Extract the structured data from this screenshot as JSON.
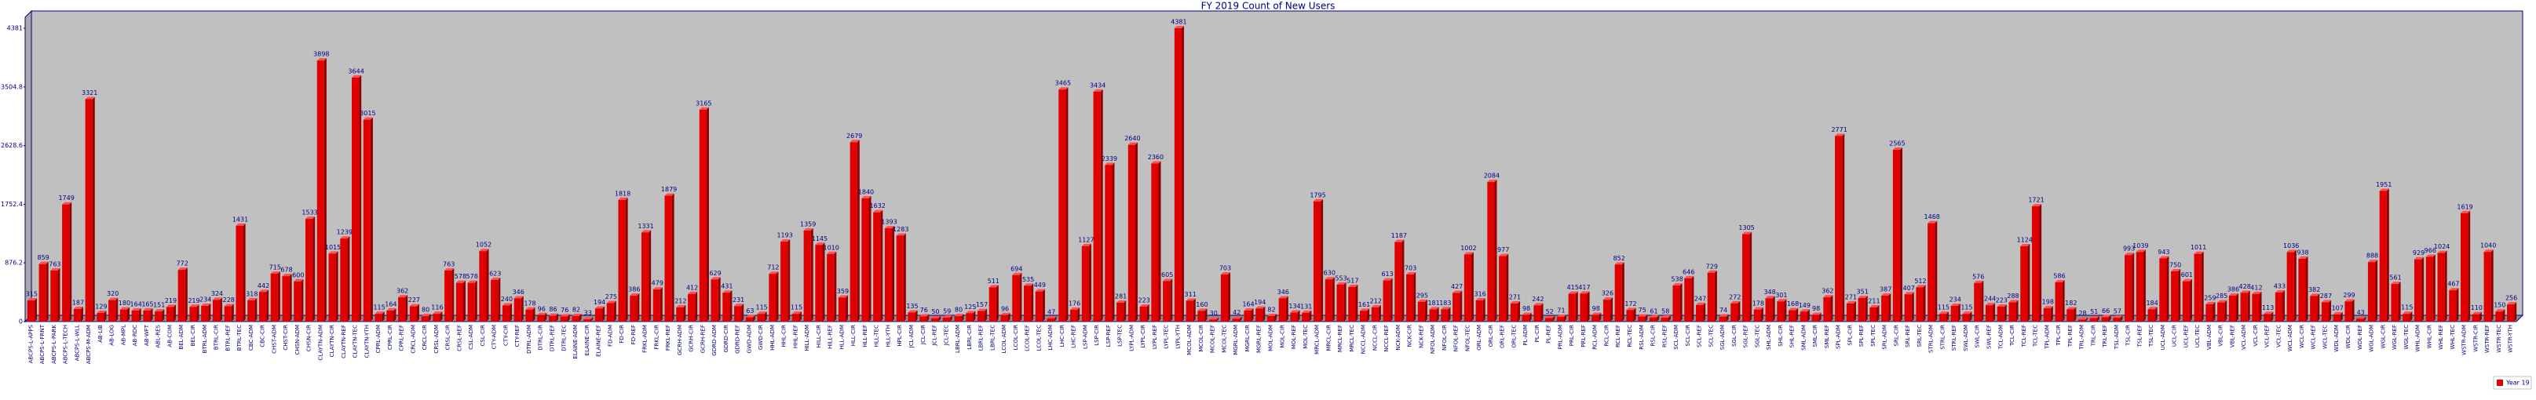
{
  "chart_data": {
    "type": "bar3d",
    "title": "FY 2019 Count of New Users",
    "categories": [
      "ABCPS-L-APPS",
      "ABCPS-L-FRNT",
      "ABCPS-L-PARK",
      "ABCPS-L-TECH",
      "ABCPS-L-WLL",
      "ABCPS-M-ADM",
      "AB-LIB",
      "AB-LOG",
      "AB-MPL",
      "AB-RDC",
      "AB-WFT",
      "ABL-RES",
      "AB-COM",
      "BEL-ADM",
      "BEL-CIR",
      "BTRL-ADM",
      "BTRL-CIR",
      "BTRL-REF",
      "BTRL-TEC",
      "CBC-ADM",
      "CBC-CIR",
      "CHST-ADM",
      "CHST-CIR",
      "CHSN-ADM",
      "CHSN-CIR",
      "CLAYTN-ADM",
      "CLAYTN-CIR",
      "CLAYTN-REF",
      "CLAYTN-TEC",
      "CLAYTN-YTH",
      "CPRL-ADM",
      "CPRL-CIR",
      "CPRL-REF",
      "CRCL-ADM",
      "CRCL-CIR",
      "CRSL-ADM",
      "CRSL-CIR",
      "CRSL-REF",
      "CSL-ADM",
      "CSL-CIR",
      "CTY-ADM",
      "CTY-CIR",
      "CTY-REF",
      "DTRL-ADM",
      "DTRL-CIR",
      "DTRL-REF",
      "DTRL-TEC",
      "ELAINE-ADM",
      "ELAINE-CIR",
      "ELAINE-REF",
      "FD-ADM",
      "FD-CIR",
      "FD-REF",
      "FRKL-ADM",
      "FRKL-CIR",
      "FRKL-REF",
      "GCRH-ADM",
      "GCRH-CIR",
      "GCRH-REF",
      "GDRD-ADM",
      "GDRD-CIR",
      "GDRD-REF",
      "GWD-ADM",
      "GWD-CIR",
      "HHL-ADM",
      "HHL-CIR",
      "HHL-REF",
      "HILL-ADM",
      "HILL-CIR",
      "HILL-REF",
      "HLL-ADM",
      "HLL-CIR",
      "HLL-REF",
      "HLL-TEC",
      "HLL-YTH",
      "HPL-CIR",
      "JCL-ADM",
      "JCL-CIR",
      "JCL-REF",
      "JCL-TEC",
      "LBRL-ADM",
      "LBRL-CIR",
      "LBRL-REF",
      "LBRL-TEC",
      "LCOL-ADM",
      "LCOL-CIR",
      "LCOL-REF",
      "LCOL-TEC",
      "LHC-ADM",
      "LHC-CIR",
      "LHC-REF",
      "LSP-ADM",
      "LSP-CIR",
      "LSP-REF",
      "LSP-TEC",
      "LYPL-ADM",
      "LYPL-CIR",
      "LYPL-REF",
      "LYPL-TEC",
      "LYPL-YTH",
      "MCOL-ADM",
      "MCOL-CIR",
      "MCOL-REF",
      "MCOL-TEC",
      "MGRL-ADM",
      "MGRL-CIR",
      "MGRL-REF",
      "MOL-ADM",
      "MOL-CIR",
      "MOL-REF",
      "MOL-TEC",
      "MRCL-ADM",
      "MRCL-CIR",
      "MRCL-REF",
      "MRCL-TEC",
      "NCCL-ADM",
      "NCCL-CIR",
      "NCCL-REF",
      "NCK-ADM",
      "NCK-CIR",
      "NCK-REF",
      "NFOL-ADM",
      "NFOL-CIR",
      "NFOL-REF",
      "NFOL-TEC",
      "ORL-ADM",
      "ORL-CIR",
      "ORL-REF",
      "ORL-TEC",
      "PL-ADM",
      "PL-CIR",
      "PL-REF",
      "PRL-ADM",
      "PRL-CIR",
      "PRL-REF",
      "RCL-ADM",
      "RCL-CIR",
      "RCL-REF",
      "RCL-TEC",
      "RSL-ADM",
      "RSL-CIR",
      "RSL-REF",
      "SCL-ADM",
      "SCL-CIR",
      "SCL-REF",
      "SCL-TEC",
      "SGL-ADM",
      "SGL-CIR",
      "SGL-REF",
      "SGL-TEC",
      "SHL-ADM",
      "SHL-CIR",
      "SHL-REF",
      "SML-ADM",
      "SML-CIR",
      "SML-REF",
      "SPL-ADM",
      "SPL-CIR",
      "SPL-REF",
      "SPL-TEC",
      "SRL-ADM",
      "SRL-CIR",
      "SRL-REF",
      "SRL-TEC",
      "STRL-ADM",
      "STRL-CIR",
      "STRL-REF",
      "SWL-ADM",
      "SWL-CIR",
      "SWL-REF",
      "TCL-ADM",
      "TCL-CIR",
      "TCL-REF",
      "TCL-TEC",
      "TPL-ADM",
      "TPL-CIR",
      "TPL-REF",
      "TRL-ADM",
      "TRL-CIR",
      "TRL-REF",
      "TSL-ADM",
      "TSL-CIR",
      "TSL-REF",
      "TSL-TEC",
      "UCL-ADM",
      "UCL-CIR",
      "UCL-REF",
      "UCL-TEC",
      "VBL-ADM",
      "VBL-CIR",
      "VBL-REF",
      "VCL-ADM",
      "VCL-CIR",
      "VCL-REF",
      "VCL-TEC",
      "WCL-ADM",
      "WCL-CIR",
      "WCL-REF",
      "WCL-TEC",
      "WDL-ADM",
      "WDL-CIR",
      "WDL-REF",
      "WGL-ADM",
      "WGL-CIR",
      "WGL-REF",
      "WGL-TEC",
      "WHL-ADM",
      "WHL-CIR",
      "WHL-REF",
      "WHL-TEC",
      "WSTR-ADM",
      "WSTR-CIR",
      "WSTR-REF",
      "WSTR-TEC",
      "WSTR-YTH"
    ],
    "series": [
      {
        "name": "Year 19",
        "color": "#e00000",
        "values": [
          315,
          859,
          763,
          1749,
          187,
          3321,
          129,
          320,
          180,
          164,
          165,
          151,
          219,
          772,
          219,
          234,
          324,
          228,
          1431,
          318,
          442,
          715,
          678,
          600,
          1533,
          3898,
          1015,
          1239,
          3644,
          3015,
          115,
          164,
          362,
          227,
          80,
          116,
          763,
          578,
          578,
          1052,
          623,
          240,
          346,
          178,
          96,
          86,
          76,
          82,
          33,
          194,
          275,
          1818,
          386,
          1331,
          479,
          1879,
          212,
          412,
          3165,
          629,
          431,
          231,
          63,
          115,
          712,
          1193,
          115,
          1359,
          1145,
          1010,
          359,
          2679,
          1840,
          1632,
          1393,
          1283,
          135,
          76,
          50,
          59,
          80,
          125,
          157,
          511,
          96,
          694,
          535,
          449,
          47,
          3465,
          176,
          1127,
          3434,
          2339,
          281,
          2640,
          223,
          2360,
          605,
          4381,
          311,
          160,
          30,
          703,
          42,
          164,
          194,
          82,
          346,
          134,
          131,
          1795,
          630,
          553,
          517,
          161,
          212,
          613,
          1187,
          703,
          295,
          181,
          183,
          427,
          1002,
          316,
          2084,
          977,
          271,
          98,
          242,
          52,
          71,
          415,
          417,
          98,
          326,
          852,
          172,
          75,
          61,
          58,
          538,
          646,
          247,
          729,
          74,
          272,
          1305,
          178,
          348,
          301,
          168,
          149,
          98,
          362,
          2771,
          271,
          351,
          211,
          387,
          2565,
          407,
          512,
          1468,
          115,
          234,
          115,
          576,
          244,
          223,
          288,
          1124,
          1721,
          198,
          586,
          182,
          28,
          51,
          66,
          57,
          993,
          1039,
          184,
          943,
          750,
          601,
          1011,
          259,
          285,
          386,
          428,
          412,
          113,
          433,
          1036,
          938,
          382,
          287,
          107,
          299,
          43,
          888,
          1951,
          561,
          115,
          929,
          966,
          1024,
          467,
          1619,
          110,
          1040,
          150,
          256
        ]
      }
    ],
    "ylim": [
      0,
      4381
    ],
    "yticks": [
      0,
      876.2,
      1752.4,
      2628.6,
      3504.8,
      4381
    ],
    "grid": false,
    "legend": "bottom-right"
  }
}
